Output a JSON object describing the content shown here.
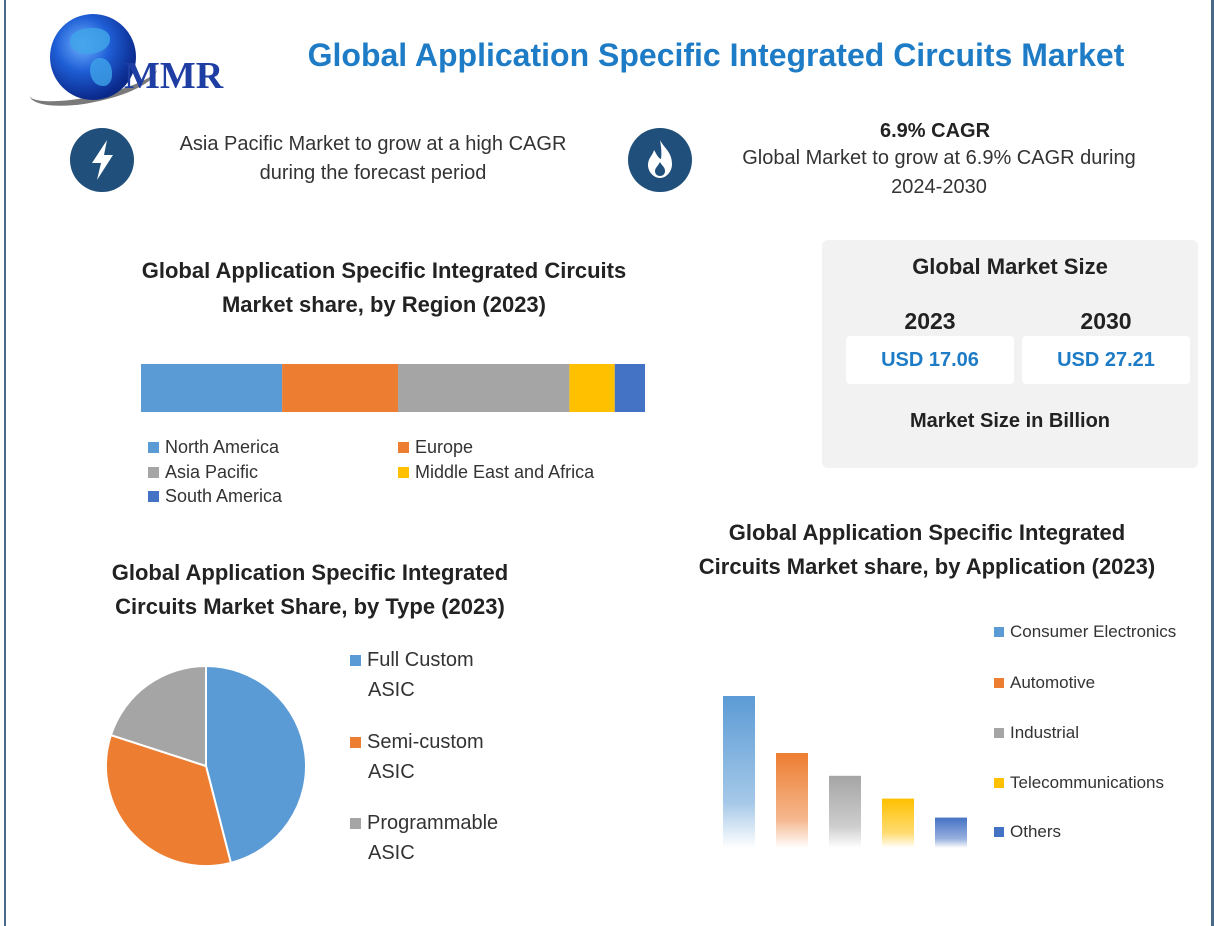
{
  "brand": {
    "logo_text": "MMR"
  },
  "title": "Global Application Specific Integrated Circuits Market",
  "highlights": {
    "apac_text": "Asia Pacific Market to grow at a high CAGR during the forecast period",
    "cagr_title": "6.9% CAGR",
    "cagr_text": "Global Market to grow at 6.9% CAGR during 2024-2030",
    "icons": [
      "lightning-bolt-icon",
      "flame-icon"
    ]
  },
  "market_size": {
    "title": "Global Market Size",
    "year_2023": "2023",
    "year_2030": "2030",
    "value_2023": "USD 17.06",
    "value_2030": "USD 27.21",
    "note": "Market Size in Billion"
  },
  "chart_data": [
    {
      "type": "bar",
      "orientation": "horizontal-stacked",
      "title": "Global Application Specific Integrated Circuits Market share, by Region (2023)",
      "series": [
        {
          "name": "North America",
          "value": 28,
          "color": "#5b9bd5"
        },
        {
          "name": "Europe",
          "value": 23,
          "color": "#ed7d31"
        },
        {
          "name": "Asia Pacific",
          "value": 34,
          "color": "#a5a5a5"
        },
        {
          "name": "Middle East and Africa",
          "value": 9,
          "color": "#ffc000"
        },
        {
          "name": "South America",
          "value": 6,
          "color": "#4472c4"
        }
      ],
      "legend_position": "bottom",
      "grid": false
    },
    {
      "type": "pie",
      "title": "Global Application Specific Integrated Circuits Market Share, by Type (2023)",
      "slices": [
        {
          "name": "Full Custom ASIC",
          "value": 46,
          "color": "#5b9bd5"
        },
        {
          "name": "Semi-custom ASIC",
          "value": 34,
          "color": "#ed7d31"
        },
        {
          "name": "Programmable ASIC",
          "value": 20,
          "color": "#a5a5a5"
        }
      ],
      "legend_lines": [
        [
          "Full Custom",
          "ASIC"
        ],
        [
          "Semi-custom",
          "ASIC"
        ],
        [
          "Programmable",
          "ASIC"
        ]
      ],
      "legend_position": "right"
    },
    {
      "type": "bar",
      "title": "Global Application Specific Integrated Circuits Market share, by Application (2023)",
      "categories": [
        "Consumer Electronics",
        "Automotive",
        "Industrial",
        "Telecommunications",
        "Others"
      ],
      "values": [
        40,
        25,
        19,
        13,
        8
      ],
      "colors": [
        "#5b9bd5",
        "#ed7d31",
        "#a5a5a5",
        "#ffc000",
        "#4472c4"
      ],
      "legend_position": "right",
      "grid": false
    }
  ]
}
